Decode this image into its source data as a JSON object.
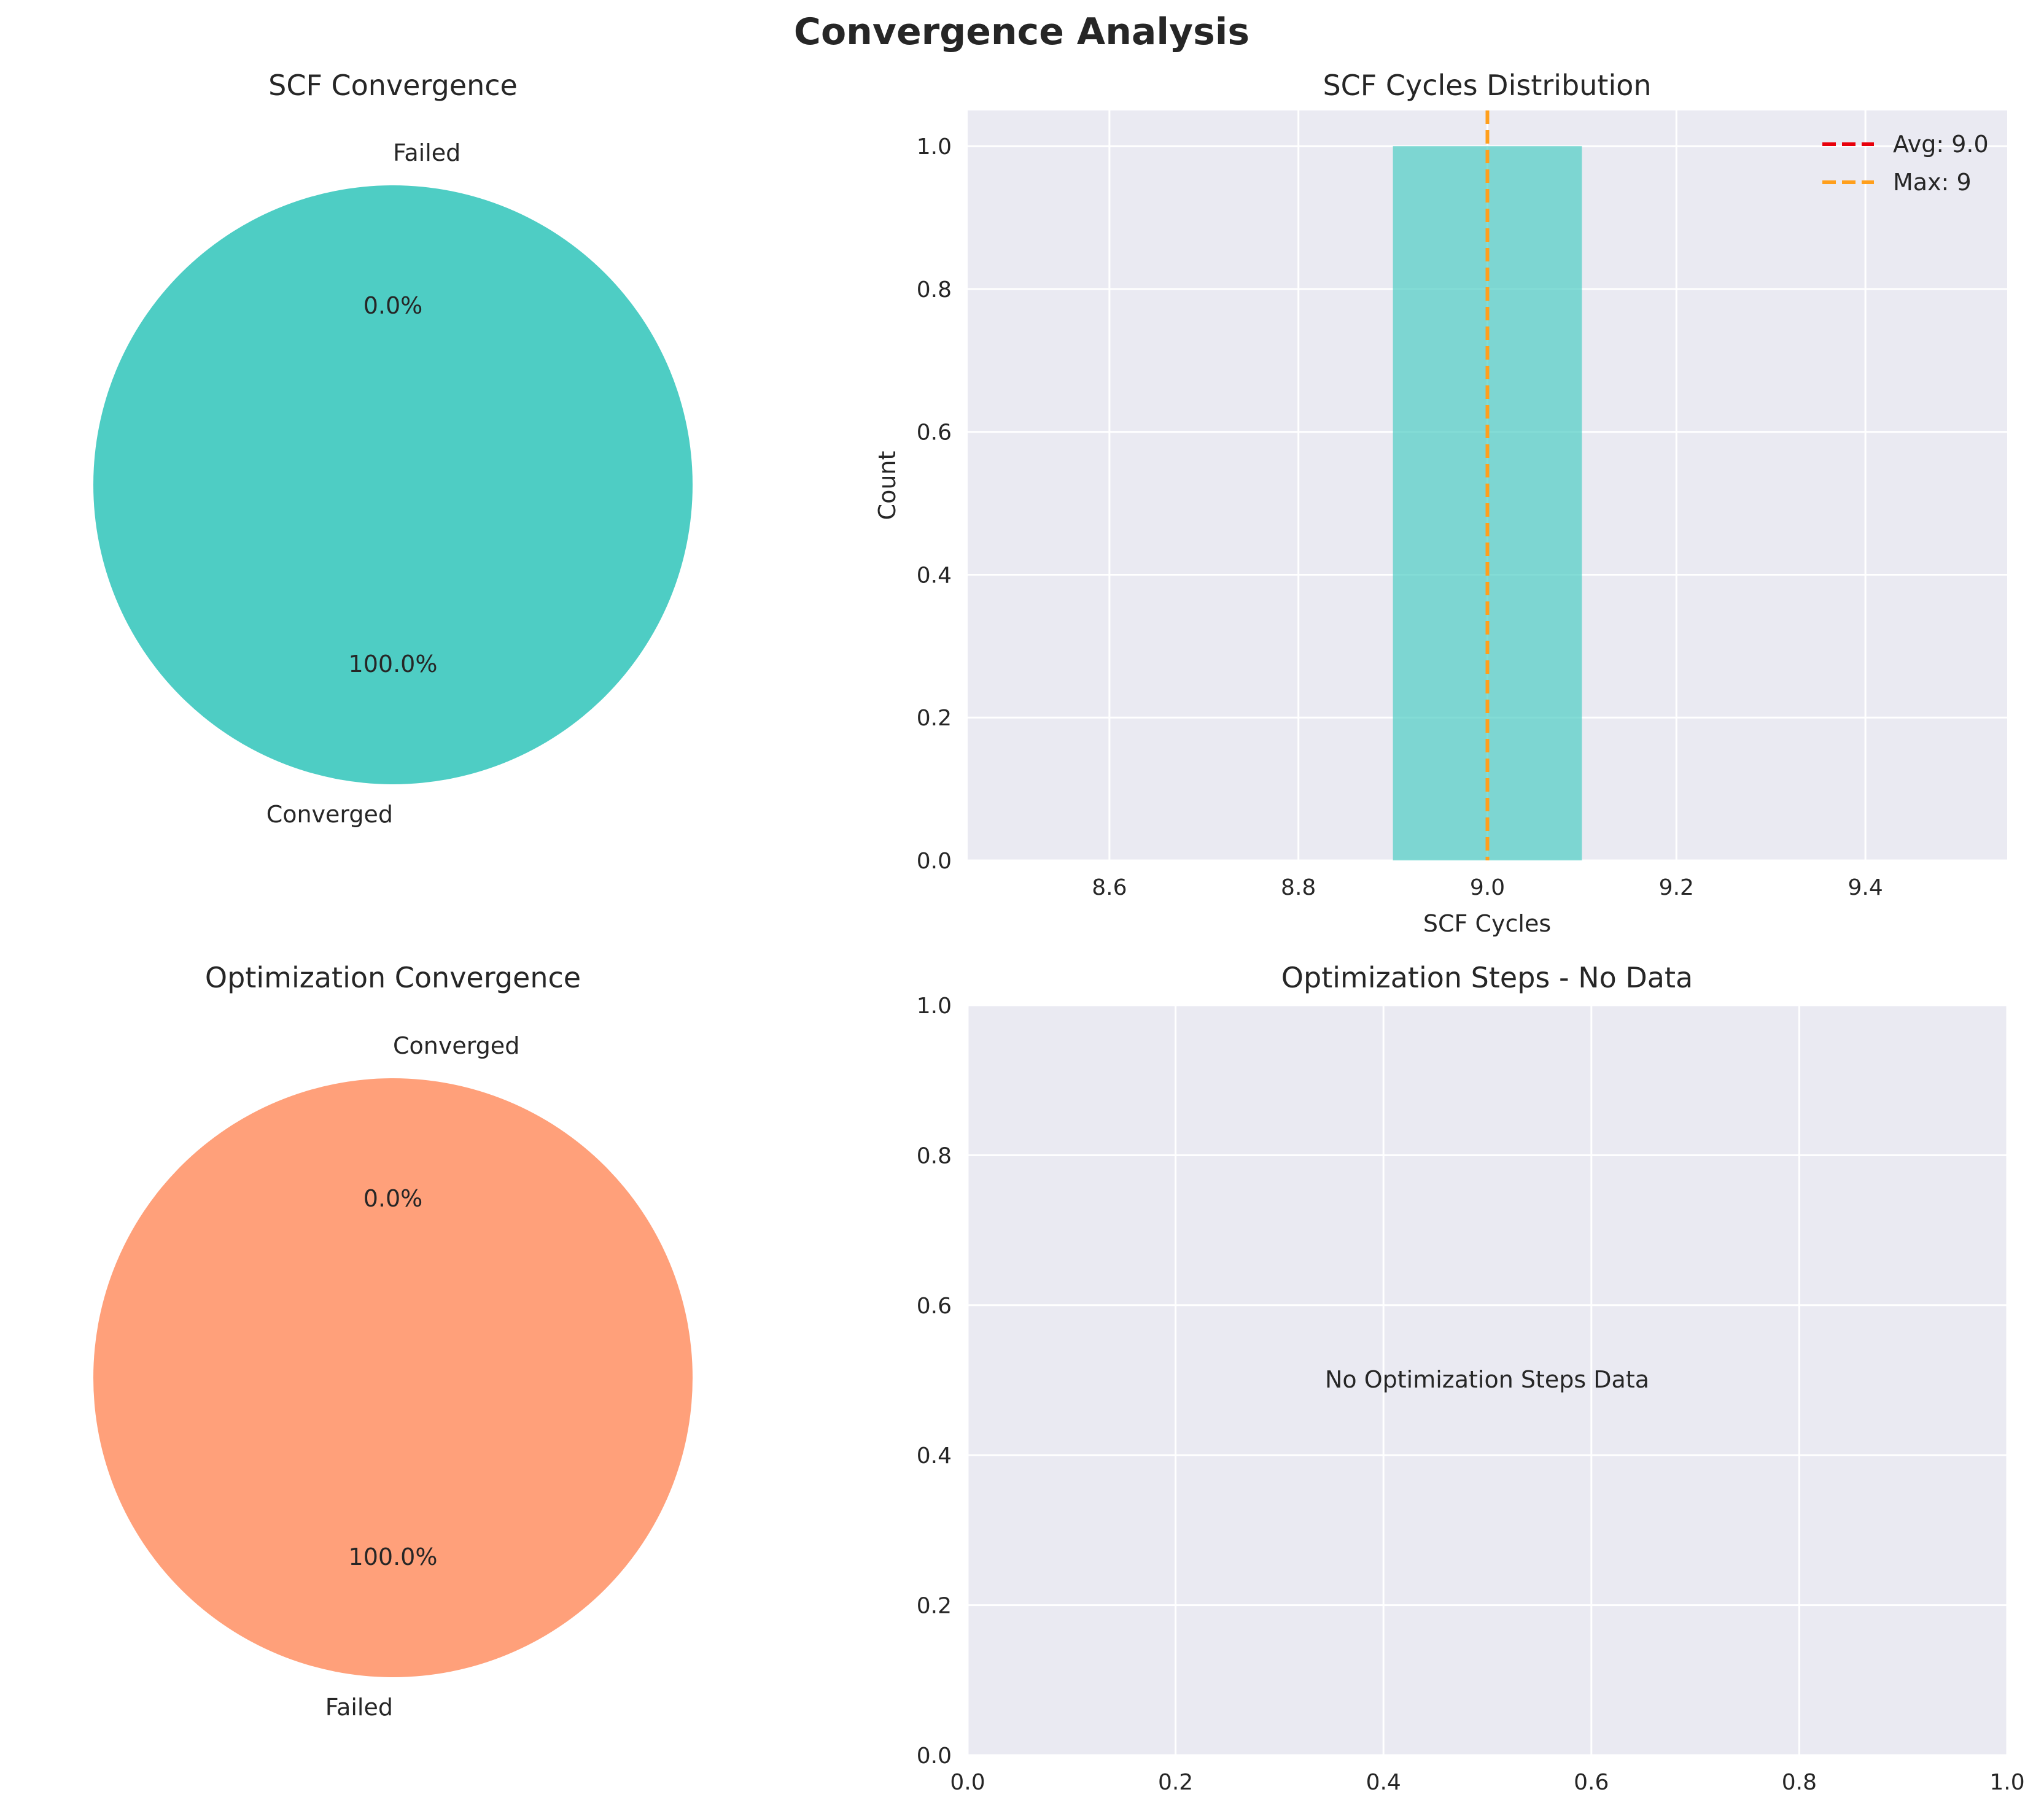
{
  "figure": {
    "title": "Convergence Analysis"
  },
  "chart_data": [
    {
      "type": "pie",
      "title": "SCF Convergence",
      "labels": [
        "Converged",
        "Failed"
      ],
      "values": [
        1,
        0
      ],
      "autopct": [
        "100.0%",
        "0.0%"
      ],
      "colors": [
        "#4ecdc4",
        "#ff6b6b"
      ]
    },
    {
      "type": "bar",
      "title": "SCF Cycles Distribution",
      "xlabel": "SCF Cycles",
      "ylabel": "Count",
      "bins": [
        {
          "x0": 8.9,
          "x1": 9.1,
          "count": 1
        }
      ],
      "xlim": [
        8.45,
        9.55
      ],
      "ylim": [
        0,
        1.05
      ],
      "xticks": [
        "8.6",
        "8.8",
        "9.0",
        "9.2",
        "9.4"
      ],
      "yticks": [
        "0.0",
        "0.2",
        "0.4",
        "0.6",
        "0.8",
        "1.0"
      ],
      "bar_color": "#4ecdc4",
      "vlines": [
        {
          "label": "Avg: 9.0",
          "x": 9.0,
          "color": "#e8000b",
          "style": "dashed"
        },
        {
          "label": "Max: 9",
          "x": 9,
          "color": "#ff9f1c",
          "style": "dashed"
        }
      ],
      "legend_position": "top-right",
      "grid": true
    },
    {
      "type": "pie",
      "title": "Optimization Convergence",
      "labels": [
        "Converged",
        "Failed"
      ],
      "values": [
        0,
        1
      ],
      "autopct": [
        "0.0%",
        "100.0%"
      ],
      "colors": [
        "#4ecdc4",
        "#ffa07a"
      ]
    },
    {
      "type": "scatter",
      "title": "Optimization Steps - No Data",
      "message": "No Optimization Steps Data",
      "xlim": [
        0,
        1
      ],
      "ylim": [
        0,
        1
      ],
      "xticks": [
        "0.0",
        "0.2",
        "0.4",
        "0.6",
        "0.8",
        "1.0"
      ],
      "yticks": [
        "0.0",
        "0.2",
        "0.4",
        "0.6",
        "0.8",
        "1.0"
      ],
      "grid": true
    }
  ]
}
